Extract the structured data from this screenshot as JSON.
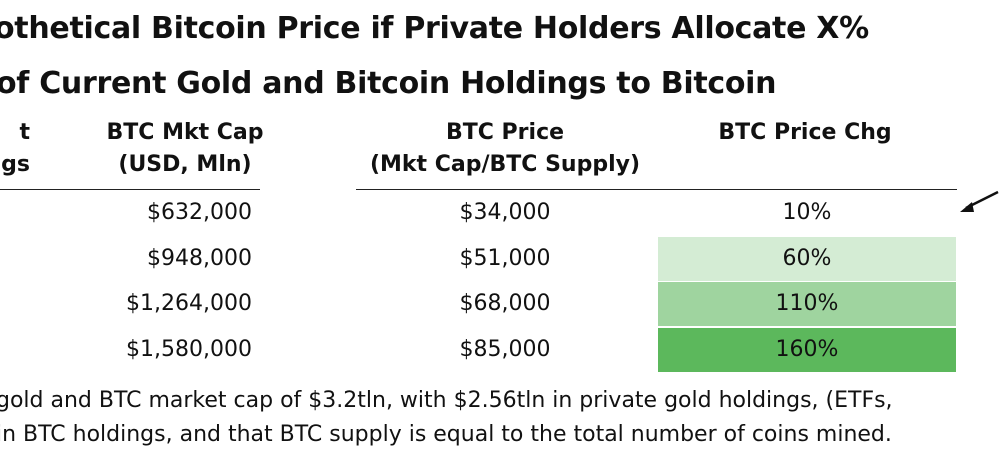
{
  "title": [
    "othetical Bitcoin Price if Private Holders Allocate X%",
    "of Current Gold and Bitcoin Holdings to Bitcoin"
  ],
  "headers": {
    "first": [
      "t",
      "gs"
    ],
    "mktcap": [
      "BTC Mkt Cap",
      "(USD, Mln)"
    ],
    "price": [
      "BTC Price",
      "(Mkt Cap/BTC Supply)"
    ],
    "chg": [
      "BTC Price Chg"
    ]
  },
  "chart_data": {
    "type": "table",
    "columns": [
      "BTC Mkt Cap (USD, Mln)",
      "BTC Price (Mkt Cap/BTC Supply)",
      "BTC Price Chg"
    ],
    "rows": [
      {
        "mktcap": "$632,000",
        "price": "$34,000",
        "chg": "10%",
        "chg_value": 10
      },
      {
        "mktcap": "$948,000",
        "price": "$51,000",
        "chg": "60%",
        "chg_value": 60
      },
      {
        "mktcap": "$1,264,000",
        "price": "$68,000",
        "chg": "110%",
        "chg_value": 110
      },
      {
        "mktcap": "$1,580,000",
        "price": "$85,000",
        "chg": "160%",
        "chg_value": 160
      }
    ],
    "chg_colors": [
      "#ffffff",
      "#d4ecd4",
      "#9fd49f",
      "#5cb85c"
    ]
  },
  "footnote": [
    "gold and BTC market cap of $3.2tln, with $2.56tln in private gold holdings, (ETFs,",
    "in BTC holdings, and that BTC supply is equal to the total number of coins mined."
  ]
}
